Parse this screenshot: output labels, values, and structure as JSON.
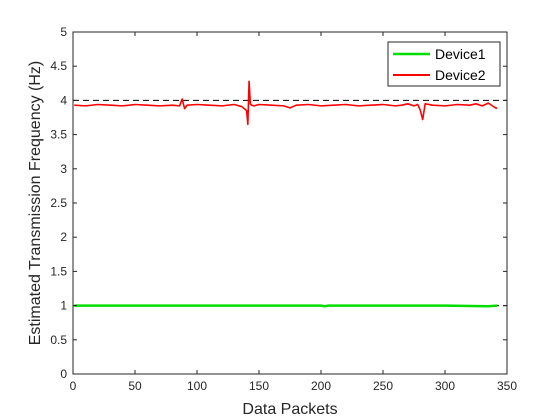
{
  "chart_data": {
    "type": "line",
    "title": "",
    "xlabel": "Data Packets",
    "ylabel": "Estimated Transmission Frequency (Hz)",
    "xlim": [
      0,
      350
    ],
    "ylim": [
      0,
      5
    ],
    "xticks": [
      0,
      50,
      100,
      150,
      200,
      250,
      300,
      350
    ],
    "yticks": [
      0,
      0.5,
      1,
      1.5,
      2,
      2.5,
      3,
      3.5,
      4,
      4.5,
      5
    ],
    "grid": false,
    "legend_position": "top-right",
    "reference_lines": [
      {
        "y": 1,
        "style": "dashed",
        "color": "#000000"
      },
      {
        "y": 4,
        "style": "dashed",
        "color": "#000000"
      }
    ],
    "series": [
      {
        "name": "Device1",
        "color": "#00dd00",
        "x": [
          1,
          50,
          100,
          150,
          200,
          203,
          206,
          250,
          300,
          335,
          342
        ],
        "y": [
          1.0,
          1.0,
          1.0,
          1.0,
          1.0,
          0.99,
          1.0,
          1.0,
          1.0,
          0.99,
          1.0
        ]
      },
      {
        "name": "Device2",
        "color": "#ff0000",
        "x": [
          1,
          10,
          20,
          30,
          40,
          50,
          60,
          70,
          80,
          86,
          88,
          90,
          92,
          100,
          110,
          120,
          130,
          136,
          140,
          141,
          142,
          143,
          144,
          146,
          150,
          160,
          170,
          175,
          180,
          190,
          200,
          210,
          220,
          230,
          240,
          250,
          260,
          265,
          270,
          275,
          278,
          280,
          282,
          284,
          290,
          300,
          310,
          320,
          325,
          330,
          335,
          340,
          342
        ],
        "y": [
          3.93,
          3.92,
          3.94,
          3.93,
          3.92,
          3.94,
          3.93,
          3.92,
          3.93,
          3.92,
          4.02,
          3.88,
          3.93,
          3.94,
          3.93,
          3.92,
          3.94,
          3.91,
          3.85,
          3.65,
          4.28,
          3.95,
          3.93,
          3.92,
          3.94,
          3.93,
          3.92,
          3.89,
          3.93,
          3.94,
          3.92,
          3.93,
          3.94,
          3.92,
          3.93,
          3.94,
          3.92,
          3.93,
          3.95,
          3.92,
          3.94,
          3.86,
          3.72,
          3.95,
          3.93,
          3.92,
          3.94,
          3.93,
          3.95,
          3.92,
          3.96,
          3.9,
          3.88
        ]
      }
    ]
  }
}
